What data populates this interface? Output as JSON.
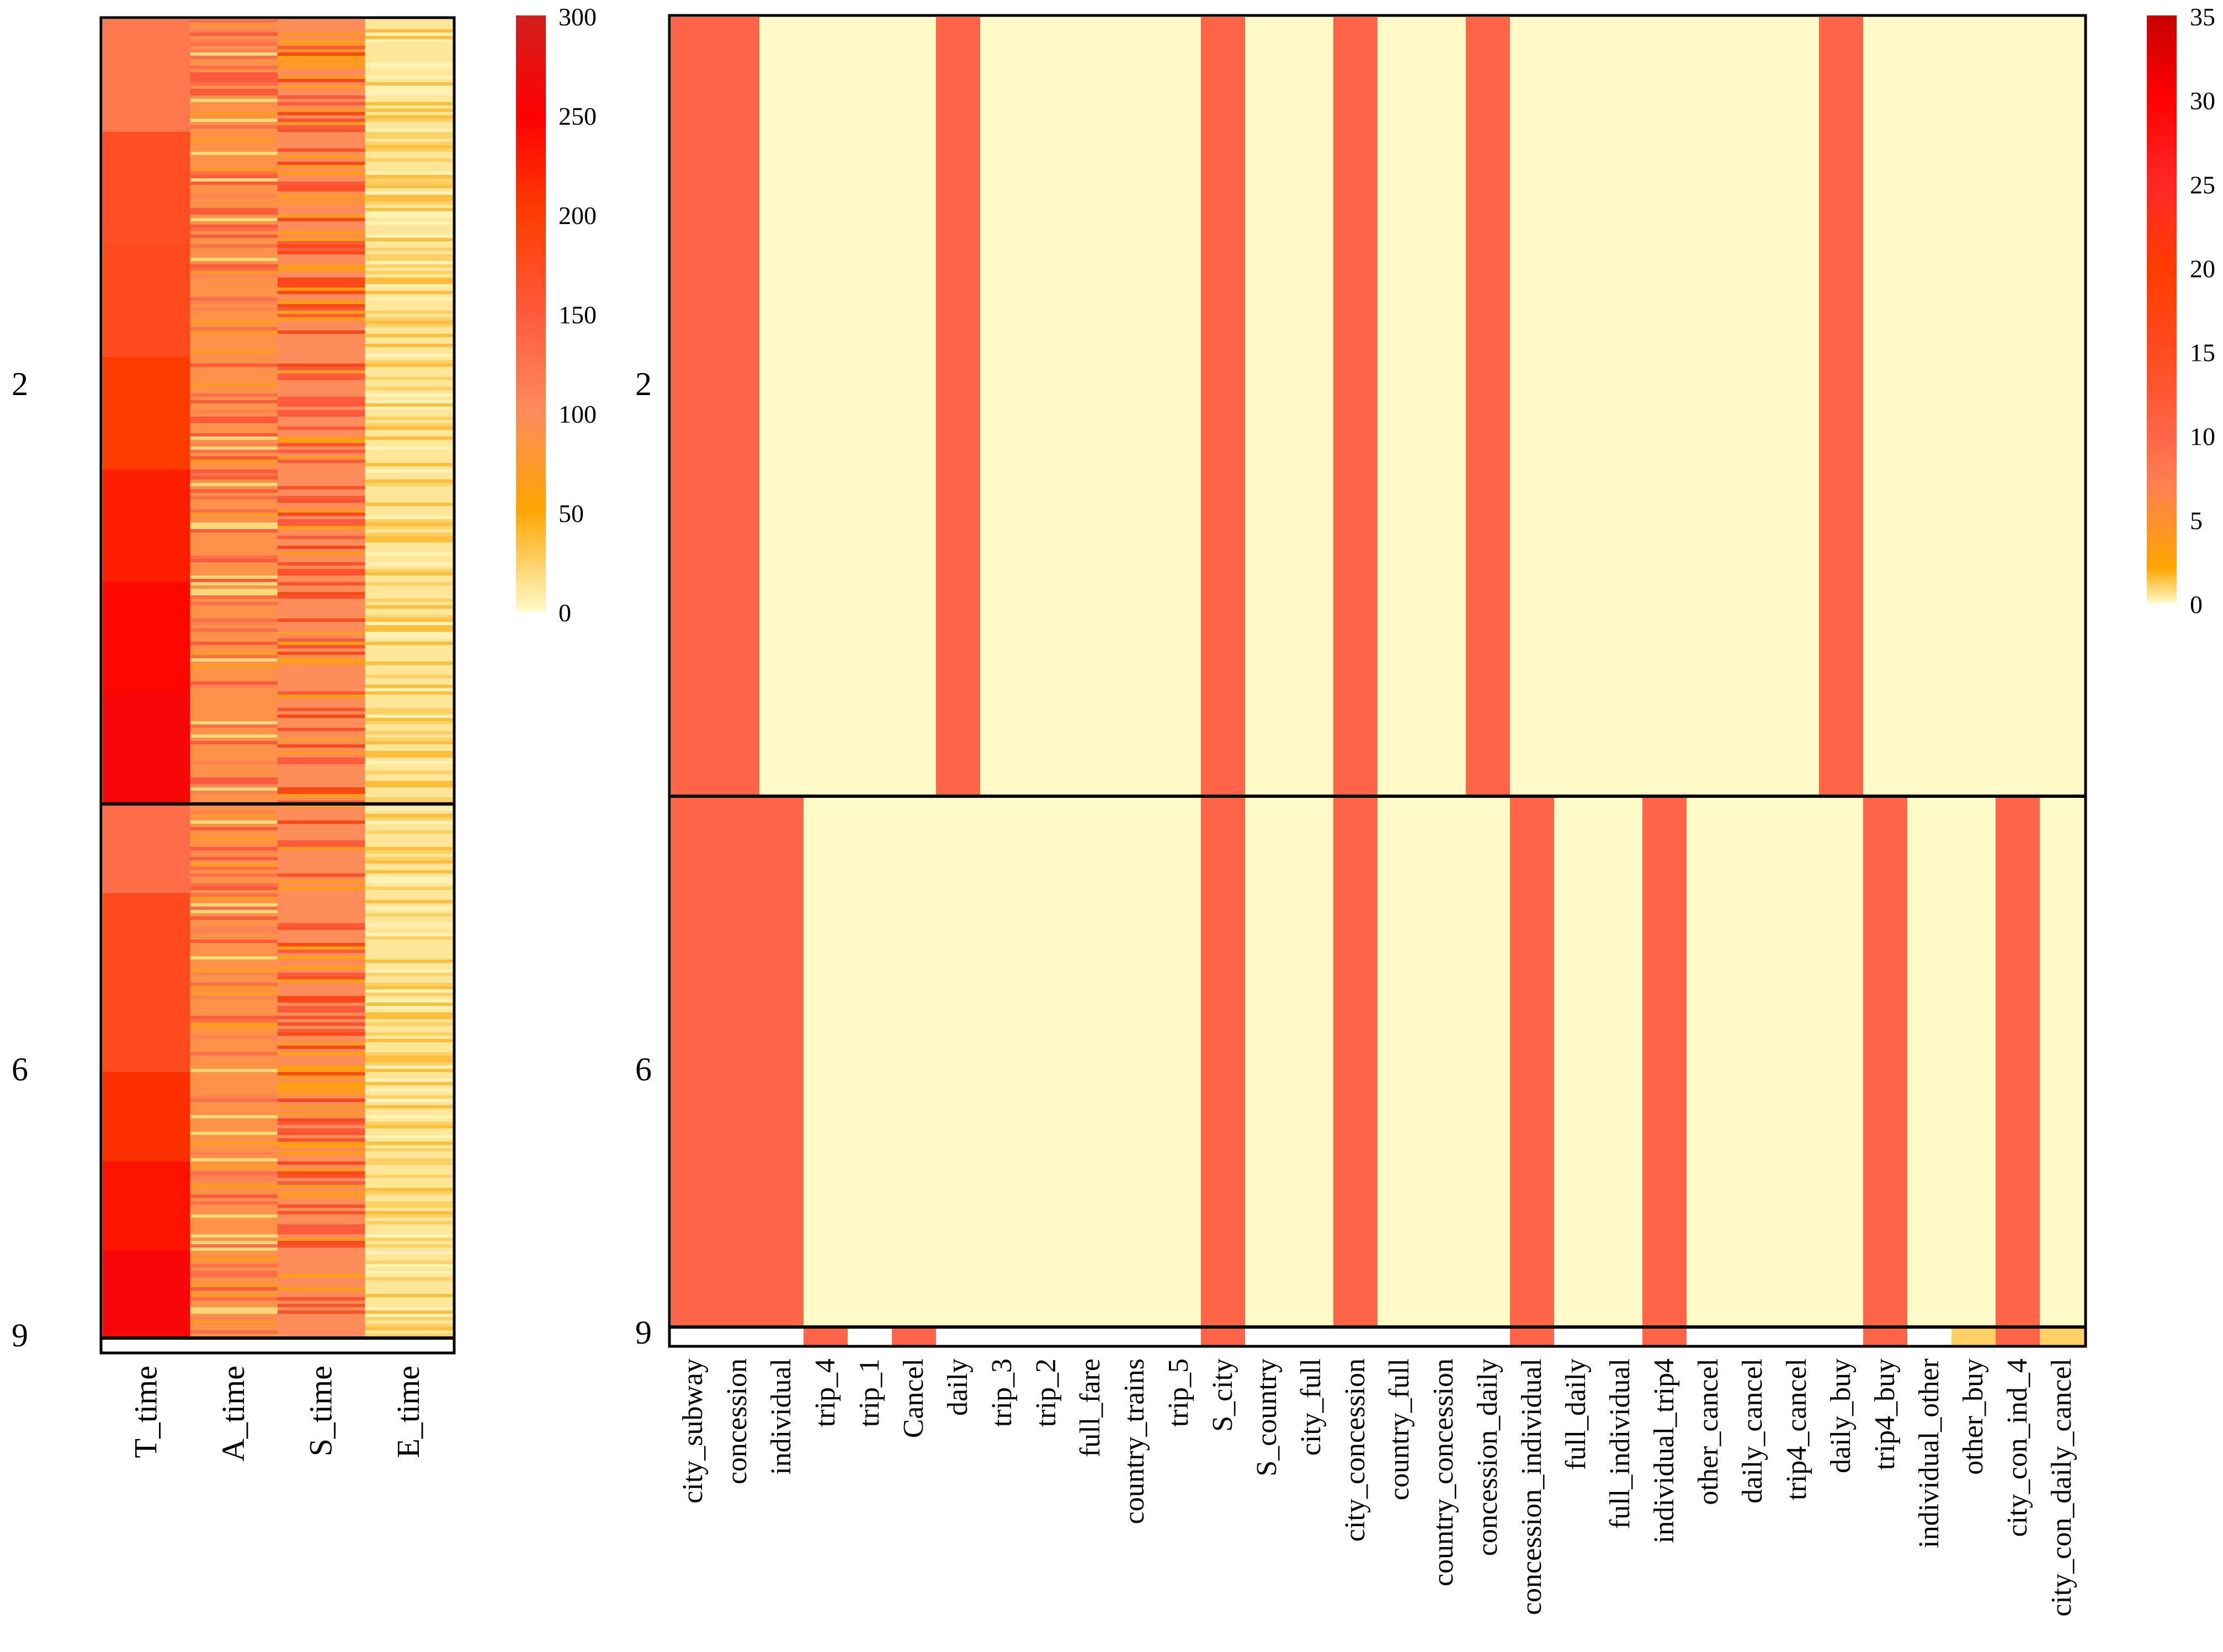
{
  "chart_data": [
    {
      "type": "heatmap",
      "title": "",
      "row_groups": [
        {
          "label": "2",
          "share": 0.595
        },
        {
          "label": "6",
          "share": 0.401
        },
        {
          "label": "9",
          "share": 0.004
        }
      ],
      "columns": [
        "T_time",
        "A_time",
        "S_time",
        "E_time"
      ],
      "column_profiles": [
        {
          "name": "T_time",
          "group_values": [
            [
              120,
              170,
              175,
              200,
              225,
              245,
              260
            ],
            [
              130,
              175,
              175,
              210,
              235,
              260
            ]
          ]
        },
        {
          "name": "A_time",
          "base": 90,
          "stripe_values": [
            20,
            110,
            130,
            150,
            70
          ]
        },
        {
          "name": "S_time",
          "base": 100,
          "stripe_values": [
            150,
            165,
            180,
            70,
            60
          ]
        },
        {
          "name": "E_time",
          "base": 12,
          "stripe_values": [
            25,
            35,
            5
          ]
        }
      ],
      "colorbar": {
        "min": 0,
        "max": 300,
        "ticks": [
          "0",
          "50",
          "100",
          "150",
          "200",
          "250",
          "300"
        ]
      }
    },
    {
      "type": "heatmap",
      "title": "",
      "row_groups": [
        {
          "label": "2",
          "share": 0.595
        },
        {
          "label": "6",
          "share": 0.401
        },
        {
          "label": "9",
          "share": 0.004
        }
      ],
      "columns": [
        "city_subway",
        "concession",
        "individual",
        "trip_4",
        "trip_1",
        "Cancel",
        "daily",
        "trip_3",
        "trip_2",
        "full_fare",
        "country_trains",
        "trip_5",
        "S_city",
        "S_country",
        "city_full",
        "city_concession",
        "country_full",
        "country_concession",
        "concession_daily",
        "concession_individual",
        "full_daily",
        "full_individual",
        "individual_trip4",
        "other_cancel",
        "daily_cancel",
        "trip4_cancel",
        "daily_buy",
        "trip4_buy",
        "individual_other",
        "other_buy",
        "city_con_ind_4",
        "city_con_daily_cancel"
      ],
      "values": [
        [
          10,
          10,
          0,
          0,
          0,
          0,
          10,
          0,
          0,
          0,
          0,
          0,
          10,
          0,
          0,
          10,
          0,
          0,
          10,
          0,
          0,
          0,
          0,
          0,
          0,
          0,
          10,
          0,
          0,
          0,
          0,
          0
        ],
        [
          10,
          10,
          10,
          0,
          0,
          0,
          0,
          0,
          0,
          0,
          0,
          0,
          10,
          0,
          0,
          10,
          0,
          0,
          0,
          10,
          0,
          0,
          10,
          0,
          0,
          0,
          0,
          10,
          0,
          0,
          10,
          0
        ],
        [
          0,
          0,
          0,
          10,
          0,
          10,
          0,
          0,
          0,
          0,
          0,
          0,
          10,
          0,
          0,
          0,
          0,
          0,
          0,
          10,
          0,
          0,
          10,
          0,
          0,
          0,
          0,
          10,
          0,
          1,
          10,
          1
        ]
      ],
      "colorbar": {
        "min": 0,
        "max": 35,
        "ticks": [
          "0",
          "5",
          "10",
          "15",
          "20",
          "25",
          "30",
          "35"
        ]
      }
    }
  ]
}
